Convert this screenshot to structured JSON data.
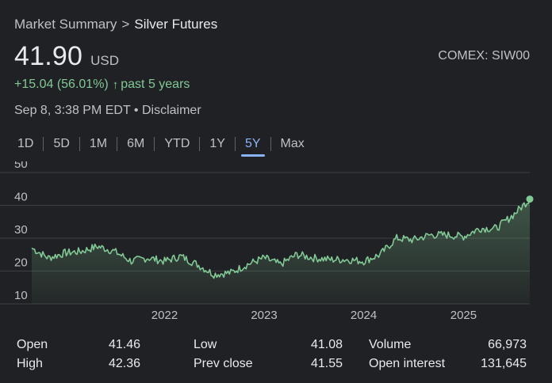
{
  "breadcrumb": {
    "parent": "Market Summary",
    "separator": ">",
    "current": "Silver Futures"
  },
  "quote": {
    "price": "41.90",
    "currency": "USD",
    "ticker": "COMEX: SIW00",
    "change": "+15.04 (56.01%)",
    "change_arrow": "arrow-up-icon",
    "period": "past 5 years",
    "timestamp": "Sep 8, 3:38 PM EDT",
    "dot": "•",
    "disclaimer": "Disclaimer"
  },
  "ranges": {
    "tabs": [
      "1D",
      "5D",
      "1M",
      "6M",
      "YTD",
      "1Y",
      "5Y",
      "Max"
    ],
    "active": "5Y"
  },
  "stats": {
    "row1": [
      {
        "label": "Open",
        "value": "41.46"
      },
      {
        "label": "Low",
        "value": "41.08"
      },
      {
        "label": "Volume",
        "value": "66,973"
      }
    ],
    "row2": [
      {
        "label": "High",
        "value": "42.36"
      },
      {
        "label": "Prev close",
        "value": "41.55"
      },
      {
        "label": "Open interest",
        "value": "131,645"
      }
    ]
  },
  "colors": {
    "background": "#202124",
    "positive": "#81c995",
    "accent": "#8ab4f8",
    "grid": "#3c4043"
  },
  "chart_data": {
    "type": "area",
    "title": "",
    "xlabel": "",
    "ylabel": "",
    "ylim": [
      10,
      50
    ],
    "yticks": [
      "50",
      "40",
      "30",
      "20",
      "10"
    ],
    "xticks": [
      "2022",
      "2023",
      "2024",
      "2025"
    ],
    "grid": true,
    "x": [
      "2020-09",
      "2020-11",
      "2021-01",
      "2021-03",
      "2021-05",
      "2021-07",
      "2021-09",
      "2021-11",
      "2022-01",
      "2022-03",
      "2022-05",
      "2022-07",
      "2022-09",
      "2022-11",
      "2023-01",
      "2023-03",
      "2023-05",
      "2023-07",
      "2023-09",
      "2023-11",
      "2024-01",
      "2024-03",
      "2024-05",
      "2024-07",
      "2024-09",
      "2024-11",
      "2025-01",
      "2025-03",
      "2025-05",
      "2025-07",
      "2025-09"
    ],
    "series": [
      {
        "values": [
          27,
          24,
          25.5,
          26,
          27.5,
          26,
          23,
          24,
          23,
          24.5,
          22,
          19,
          19.5,
          22,
          24,
          22,
          25,
          24,
          23.5,
          23.5,
          23,
          25,
          30,
          29.5,
          31,
          31,
          30.5,
          33,
          33,
          37,
          41.9
        ]
      }
    ]
  }
}
